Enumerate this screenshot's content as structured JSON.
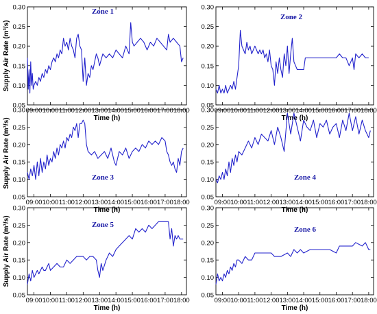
{
  "chart_data": [
    {
      "type": "line",
      "title": "Zone 1",
      "xlabel": "Time (h)",
      "ylabel": "Supply Air Rate (m³/s)",
      "xlim": [
        8.6,
        18.3
      ],
      "ylim": [
        0.05,
        0.3
      ],
      "yticks": [
        "0.05",
        "0.10",
        "0.15",
        "0.20",
        "0.25",
        "0.30"
      ],
      "xticks": [
        "09:00",
        "10:00",
        "11:00",
        "12:00",
        "13:00",
        "14:00",
        "15:00",
        "16:00",
        "17:00",
        "18:00"
      ],
      "grid": false,
      "series": [
        {
          "x": [
            8.6,
            8.65,
            8.7,
            8.75,
            8.8,
            8.85,
            8.9,
            8.95,
            9.0,
            9.1,
            9.2,
            9.3,
            9.4,
            9.5,
            9.6,
            9.7,
            9.8,
            9.9,
            10.0,
            10.1,
            10.2,
            10.3,
            10.4,
            10.5,
            10.6,
            10.7,
            10.8,
            10.9,
            11.0,
            11.1,
            11.2,
            11.3,
            11.4,
            11.5,
            11.6,
            11.7,
            11.8,
            11.9,
            12.0,
            12.1,
            12.2,
            12.3,
            12.4,
            12.5,
            12.6,
            12.7,
            12.8,
            12.9,
            13.0,
            13.2,
            13.4,
            13.6,
            13.8,
            14.0,
            14.2,
            14.4,
            14.6,
            14.8,
            14.9,
            15.0,
            15.1,
            15.3,
            15.5,
            15.7,
            15.9,
            16.1,
            16.3,
            16.5,
            16.7,
            16.9,
            17.1,
            17.2,
            17.3,
            17.5,
            17.7,
            17.9,
            18.0,
            18.1
          ],
          "y": [
            0.17,
            0.09,
            0.14,
            0.08,
            0.16,
            0.1,
            0.13,
            0.09,
            0.1,
            0.11,
            0.1,
            0.12,
            0.11,
            0.13,
            0.12,
            0.14,
            0.13,
            0.15,
            0.14,
            0.16,
            0.17,
            0.16,
            0.18,
            0.17,
            0.19,
            0.18,
            0.22,
            0.2,
            0.21,
            0.19,
            0.22,
            0.2,
            0.19,
            0.17,
            0.22,
            0.23,
            0.2,
            0.19,
            0.11,
            0.17,
            0.1,
            0.13,
            0.12,
            0.15,
            0.14,
            0.16,
            0.18,
            0.17,
            0.15,
            0.18,
            0.17,
            0.18,
            0.17,
            0.19,
            0.18,
            0.17,
            0.2,
            0.18,
            0.26,
            0.21,
            0.2,
            0.21,
            0.22,
            0.21,
            0.19,
            0.21,
            0.2,
            0.22,
            0.21,
            0.2,
            0.19,
            0.23,
            0.21,
            0.22,
            0.21,
            0.2,
            0.16,
            0.17
          ]
        }
      ]
    },
    {
      "type": "line",
      "title": "Zone 2",
      "xlabel": "Time (h)",
      "ylabel": "",
      "xlim": [
        8.6,
        18.3
      ],
      "ylim": [
        0.05,
        0.3
      ],
      "yticks": [
        "0.05",
        "0.10",
        "0.15",
        "0.20",
        "0.25",
        "0.30"
      ],
      "xticks": [
        "09:00",
        "10:00",
        "11:00",
        "12:00",
        "13:00",
        "14:00",
        "15:00",
        "16:00",
        "17:00",
        "18:00"
      ],
      "grid": false,
      "series": [
        {
          "x": [
            8.6,
            8.7,
            8.8,
            8.9,
            9.0,
            9.1,
            9.2,
            9.3,
            9.4,
            9.5,
            9.6,
            9.7,
            9.8,
            9.9,
            10.0,
            10.1,
            10.2,
            10.3,
            10.4,
            10.5,
            10.6,
            10.7,
            10.8,
            10.9,
            11.0,
            11.1,
            11.2,
            11.3,
            11.4,
            11.5,
            11.6,
            11.7,
            11.8,
            11.9,
            12.0,
            12.1,
            12.2,
            12.3,
            12.4,
            12.5,
            12.6,
            12.7,
            12.8,
            12.9,
            13.0,
            13.1,
            13.2,
            13.3,
            13.4,
            13.5,
            13.6,
            13.8,
            14.0,
            14.1,
            14.3,
            14.6,
            15.0,
            15.5,
            16.0,
            16.2,
            16.4,
            16.6,
            16.8,
            17.0,
            17.1,
            17.2,
            17.4,
            17.6,
            17.8,
            18.0
          ],
          "y": [
            0.09,
            0.08,
            0.1,
            0.08,
            0.09,
            0.08,
            0.1,
            0.08,
            0.09,
            0.1,
            0.09,
            0.11,
            0.09,
            0.12,
            0.15,
            0.24,
            0.2,
            0.19,
            0.18,
            0.21,
            0.19,
            0.2,
            0.18,
            0.19,
            0.2,
            0.19,
            0.18,
            0.19,
            0.18,
            0.19,
            0.17,
            0.18,
            0.16,
            0.19,
            0.15,
            0.14,
            0.1,
            0.16,
            0.13,
            0.17,
            0.14,
            0.12,
            0.18,
            0.15,
            0.2,
            0.13,
            0.18,
            0.22,
            0.16,
            0.15,
            0.14,
            0.14,
            0.14,
            0.17,
            0.17,
            0.17,
            0.17,
            0.17,
            0.17,
            0.18,
            0.17,
            0.17,
            0.15,
            0.17,
            0.14,
            0.18,
            0.17,
            0.18,
            0.17,
            0.17
          ]
        }
      ]
    },
    {
      "type": "line",
      "title": "Zone 3",
      "xlabel": "Time (h)",
      "ylabel": "Supply Air Rate (m³/s)",
      "xlim": [
        8.6,
        18.3
      ],
      "ylim": [
        0.05,
        0.3
      ],
      "yticks": [
        "0.05",
        "0.10",
        "0.15",
        "0.20",
        "0.25",
        "0.30"
      ],
      "xticks": [
        "09:00",
        "10:00",
        "11:00",
        "12:00",
        "13:00",
        "14:00",
        "15:00",
        "16:00",
        "17:00",
        "18:00"
      ],
      "grid": false,
      "series": [
        {
          "x": [
            8.6,
            8.7,
            8.8,
            8.9,
            9.0,
            9.1,
            9.2,
            9.3,
            9.4,
            9.5,
            9.6,
            9.7,
            9.8,
            9.9,
            10.0,
            10.1,
            10.2,
            10.3,
            10.4,
            10.5,
            10.6,
            10.7,
            10.8,
            10.9,
            11.0,
            11.1,
            11.2,
            11.3,
            11.4,
            11.5,
            11.6,
            11.7,
            11.8,
            11.9,
            12.0,
            12.1,
            12.2,
            12.3,
            12.5,
            12.7,
            12.9,
            13.1,
            13.3,
            13.5,
            13.7,
            13.9,
            14.0,
            14.2,
            14.4,
            14.6,
            14.8,
            15.0,
            15.2,
            15.4,
            15.6,
            15.8,
            16.0,
            16.2,
            16.4,
            16.6,
            16.8,
            17.0,
            17.1,
            17.2,
            17.3,
            17.4,
            17.5,
            17.6,
            17.7,
            17.8,
            17.9,
            18.0,
            18.1
          ],
          "y": [
            0.12,
            0.1,
            0.13,
            0.11,
            0.14,
            0.1,
            0.15,
            0.11,
            0.16,
            0.12,
            0.15,
            0.13,
            0.17,
            0.14,
            0.16,
            0.15,
            0.18,
            0.16,
            0.19,
            0.17,
            0.2,
            0.19,
            0.21,
            0.19,
            0.22,
            0.21,
            0.23,
            0.22,
            0.25,
            0.24,
            0.26,
            0.22,
            0.26,
            0.26,
            0.27,
            0.26,
            0.2,
            0.18,
            0.17,
            0.18,
            0.16,
            0.17,
            0.18,
            0.16,
            0.19,
            0.15,
            0.14,
            0.18,
            0.17,
            0.19,
            0.16,
            0.18,
            0.19,
            0.18,
            0.2,
            0.19,
            0.21,
            0.2,
            0.21,
            0.2,
            0.22,
            0.21,
            0.18,
            0.17,
            0.15,
            0.14,
            0.15,
            0.13,
            0.12,
            0.16,
            0.14,
            0.18,
            0.19
          ]
        }
      ]
    },
    {
      "type": "line",
      "title": "Zone 4",
      "xlabel": "Time (h)",
      "ylabel": "",
      "xlim": [
        8.6,
        18.3
      ],
      "ylim": [
        0.05,
        0.3
      ],
      "yticks": [
        "0.05",
        "0.10",
        "0.15",
        "0.20",
        "0.25",
        "0.30"
      ],
      "xticks": [
        "09:00",
        "10:00",
        "11:00",
        "12:00",
        "13:00",
        "14:00",
        "15:00",
        "16:00",
        "17:00",
        "18:00"
      ],
      "grid": false,
      "series": [
        {
          "x": [
            8.6,
            8.7,
            8.8,
            8.9,
            9.0,
            9.1,
            9.2,
            9.3,
            9.4,
            9.5,
            9.6,
            9.7,
            9.8,
            9.9,
            10.0,
            10.2,
            10.4,
            10.6,
            10.8,
            11.0,
            11.2,
            11.4,
            11.6,
            11.8,
            12.0,
            12.2,
            12.4,
            12.6,
            12.8,
            13.0,
            13.2,
            13.4,
            13.6,
            13.8,
            14.0,
            14.2,
            14.4,
            14.6,
            14.8,
            15.0,
            15.2,
            15.4,
            15.6,
            15.8,
            16.0,
            16.2,
            16.4,
            16.6,
            16.8,
            17.0,
            17.2,
            17.4,
            17.6,
            17.8,
            18.0,
            18.1
          ],
          "y": [
            0.1,
            0.09,
            0.11,
            0.1,
            0.12,
            0.1,
            0.13,
            0.11,
            0.15,
            0.12,
            0.16,
            0.14,
            0.17,
            0.15,
            0.18,
            0.17,
            0.19,
            0.21,
            0.19,
            0.22,
            0.2,
            0.23,
            0.22,
            0.21,
            0.24,
            0.2,
            0.25,
            0.22,
            0.18,
            0.29,
            0.23,
            0.29,
            0.25,
            0.21,
            0.27,
            0.25,
            0.24,
            0.27,
            0.22,
            0.26,
            0.25,
            0.27,
            0.23,
            0.25,
            0.26,
            0.22,
            0.27,
            0.24,
            0.29,
            0.24,
            0.28,
            0.23,
            0.27,
            0.24,
            0.22,
            0.24
          ]
        }
      ]
    },
    {
      "type": "line",
      "title": "Zone 5",
      "xlabel": "Time (h)",
      "ylabel": "Supply Air Rate (m³/s)",
      "xlim": [
        8.6,
        18.3
      ],
      "ylim": [
        0.05,
        0.3
      ],
      "yticks": [
        "0.05",
        "0.10",
        "0.15",
        "0.20",
        "0.25",
        "0.30"
      ],
      "xticks": [
        "09:00",
        "10:00",
        "11:00",
        "12:00",
        "13:00",
        "14:00",
        "15:00",
        "16:00",
        "17:00",
        "18:00"
      ],
      "grid": false,
      "series": [
        {
          "x": [
            8.6,
            8.7,
            8.8,
            8.9,
            9.0,
            9.1,
            9.2,
            9.3,
            9.4,
            9.5,
            9.6,
            9.7,
            9.8,
            9.9,
            10.0,
            10.2,
            10.4,
            10.6,
            10.8,
            11.0,
            11.2,
            11.4,
            11.6,
            11.8,
            12.0,
            12.2,
            12.4,
            12.6,
            12.8,
            12.9,
            13.0,
            13.1,
            13.2,
            13.4,
            13.6,
            13.8,
            14.0,
            14.2,
            14.4,
            14.6,
            14.8,
            15.0,
            15.2,
            15.4,
            15.6,
            15.8,
            16.0,
            16.2,
            16.4,
            16.6,
            16.8,
            17.0,
            17.2,
            17.3,
            17.4,
            17.5,
            17.6,
            17.7,
            17.8,
            17.9,
            18.0,
            18.1
          ],
          "y": [
            0.08,
            0.11,
            0.09,
            0.12,
            0.1,
            0.11,
            0.12,
            0.11,
            0.12,
            0.13,
            0.12,
            0.12,
            0.13,
            0.14,
            0.12,
            0.13,
            0.14,
            0.13,
            0.13,
            0.15,
            0.14,
            0.15,
            0.16,
            0.16,
            0.16,
            0.15,
            0.16,
            0.16,
            0.15,
            0.12,
            0.1,
            0.14,
            0.12,
            0.15,
            0.17,
            0.16,
            0.18,
            0.19,
            0.2,
            0.21,
            0.22,
            0.21,
            0.24,
            0.23,
            0.24,
            0.23,
            0.25,
            0.24,
            0.25,
            0.26,
            0.26,
            0.26,
            0.26,
            0.21,
            0.24,
            0.19,
            0.22,
            0.21,
            0.22,
            0.21,
            0.21,
            0.21
          ]
        }
      ]
    },
    {
      "type": "line",
      "title": "Zone 6",
      "xlabel": "Time (h)",
      "ylabel": "",
      "xlim": [
        8.6,
        18.3
      ],
      "ylim": [
        0.05,
        0.3
      ],
      "yticks": [
        "0.05",
        "0.10",
        "0.15",
        "0.20",
        "0.25",
        "0.30"
      ],
      "xticks": [
        "09:00",
        "10:00",
        "11:00",
        "12:00",
        "13:00",
        "14:00",
        "15:00",
        "16:00",
        "17:00",
        "18:00"
      ],
      "grid": false,
      "series": [
        {
          "x": [
            8.6,
            8.7,
            8.8,
            8.9,
            9.0,
            9.1,
            9.2,
            9.3,
            9.4,
            9.5,
            9.6,
            9.7,
            9.8,
            9.9,
            10.0,
            10.2,
            10.4,
            10.6,
            10.8,
            11.0,
            11.2,
            11.6,
            12.0,
            12.2,
            12.6,
            13.0,
            13.2,
            13.4,
            13.6,
            13.8,
            14.0,
            14.4,
            14.8,
            15.2,
            15.6,
            16.0,
            16.2,
            16.6,
            17.0,
            17.2,
            17.6,
            17.8,
            18.0,
            18.1
          ],
          "y": [
            0.08,
            0.11,
            0.09,
            0.1,
            0.09,
            0.11,
            0.1,
            0.12,
            0.11,
            0.13,
            0.12,
            0.14,
            0.13,
            0.15,
            0.15,
            0.14,
            0.16,
            0.15,
            0.15,
            0.17,
            0.17,
            0.17,
            0.17,
            0.16,
            0.16,
            0.17,
            0.16,
            0.18,
            0.17,
            0.18,
            0.17,
            0.18,
            0.18,
            0.18,
            0.18,
            0.17,
            0.19,
            0.19,
            0.19,
            0.2,
            0.19,
            0.2,
            0.18,
            0.18
          ]
        }
      ]
    }
  ]
}
